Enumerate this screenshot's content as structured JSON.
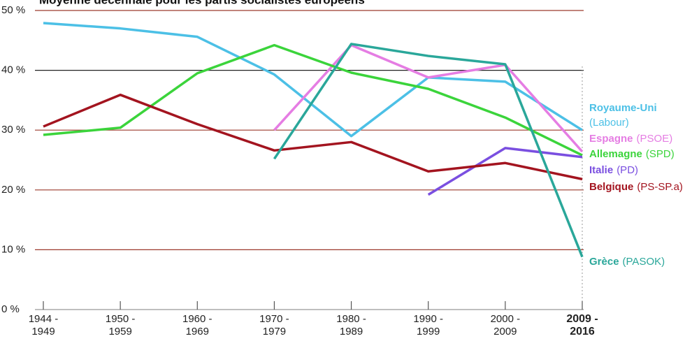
{
  "chart_data": {
    "type": "line",
    "title": "Moyenne décennale pour les partis socialistes européens",
    "categories": [
      "1944 -\n1949",
      "1950 -\n1959",
      "1960 -\n1969",
      "1970 -\n1979",
      "1980 -\n1989",
      "1990 -\n1999",
      "2000 -\n2009",
      "2009 -\n2016"
    ],
    "ylim": [
      0,
      50
    ],
    "yticks": [
      {
        "value": 0,
        "label": "0 %"
      },
      {
        "value": 10,
        "label": "10 %"
      },
      {
        "value": 20,
        "label": "20 %"
      },
      {
        "value": 30,
        "label": "30 %"
      },
      {
        "value": 40,
        "label": "40 %"
      },
      {
        "value": 50,
        "label": "50 %"
      }
    ],
    "grid": true,
    "series": [
      {
        "name": "Royaume-Uni",
        "party": "(Labour)",
        "color": "#4cc0e6",
        "values": [
          47.9,
          47.0,
          45.6,
          39.3,
          29.0,
          38.8,
          38.1,
          30.0
        ]
      },
      {
        "name": "Espagne",
        "party": "(PSOE)",
        "color": "#e57de3",
        "values": [
          null,
          null,
          null,
          30.0,
          44.2,
          38.8,
          40.9,
          26.4
        ]
      },
      {
        "name": "Allemagne",
        "party": "(SPD)",
        "color": "#3bd43b",
        "values": [
          29.2,
          30.4,
          39.5,
          44.2,
          39.6,
          36.9,
          32.1,
          25.8
        ]
      },
      {
        "name": "Italie",
        "party": "(PD)",
        "color": "#7a4fe0",
        "values": [
          null,
          null,
          null,
          null,
          null,
          19.2,
          27.0,
          25.5
        ]
      },
      {
        "name": "Belgique",
        "party": "(PS-SP.a)",
        "color": "#a3141f",
        "values": [
          30.6,
          35.9,
          31.0,
          26.6,
          28.0,
          23.1,
          24.5,
          21.8
        ]
      },
      {
        "name": "Grèce",
        "party": "(PASOK)",
        "color": "#2aa79a",
        "values": [
          null,
          null,
          null,
          25.2,
          44.4,
          42.4,
          41.0,
          8.8
        ]
      }
    ]
  }
}
